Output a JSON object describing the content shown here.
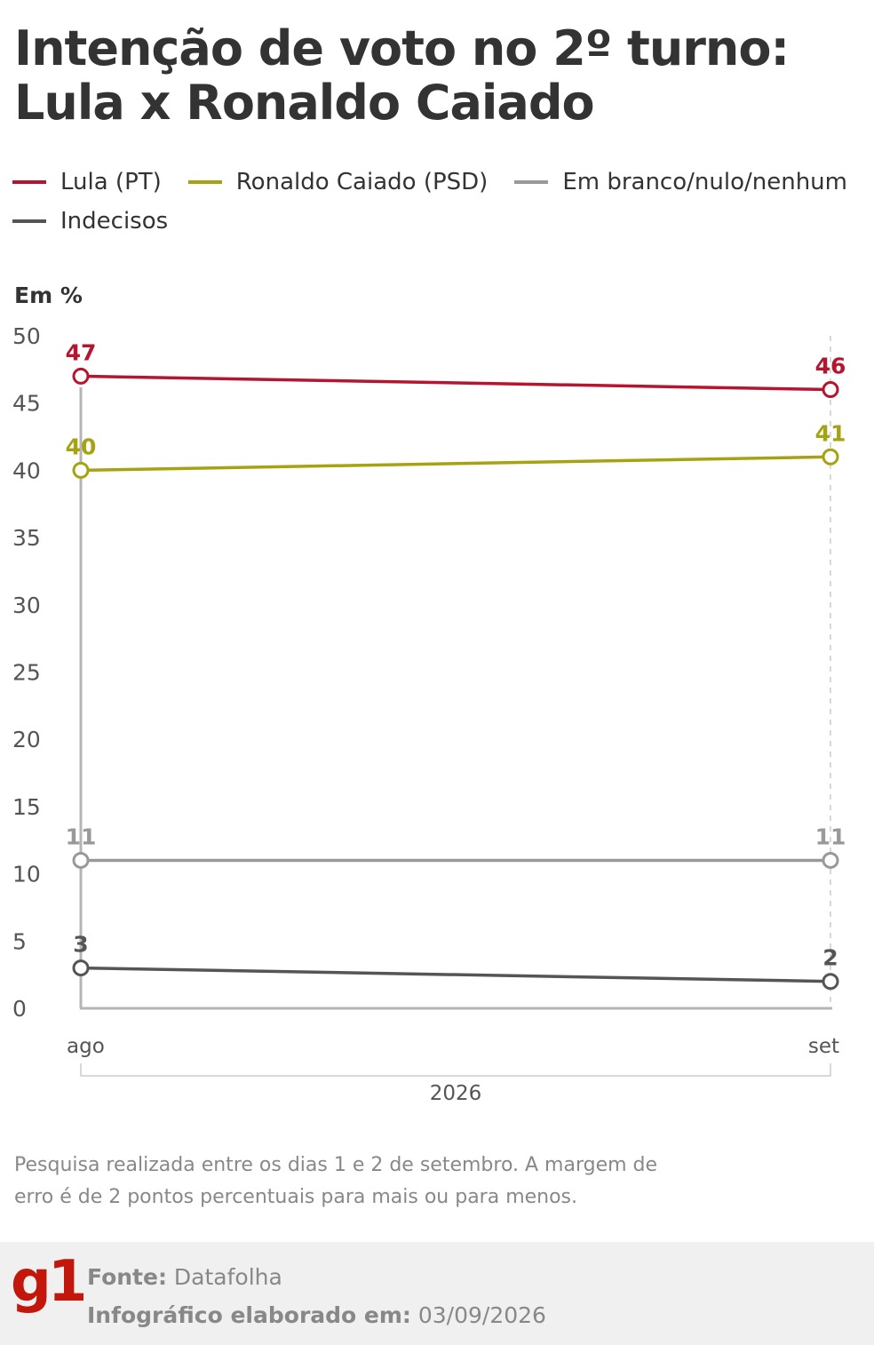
{
  "title": "Intenção de voto no 2º turno: Lula x Ronaldo Caiado",
  "unit_label": "Em %",
  "legend": [
    {
      "label": "Lula (PT)",
      "color": "#b5152f"
    },
    {
      "label": "Ronaldo Caiado (PSD)",
      "color": "#a6a312"
    },
    {
      "label": "Em branco/nulo/nenhum",
      "color": "#999999"
    },
    {
      "label": "Indecisos",
      "color": "#555555"
    }
  ],
  "chart_data": {
    "type": "line",
    "x": [
      "ago",
      "set"
    ],
    "x_group_label": "2026",
    "ylim": [
      0,
      50
    ],
    "yticks": [
      0,
      5,
      10,
      15,
      20,
      25,
      30,
      35,
      40,
      45,
      50
    ],
    "series": [
      {
        "name": "Lula (PT)",
        "values": [
          47,
          46
        ],
        "color": "#b5152f"
      },
      {
        "name": "Ronaldo Caiado (PSD)",
        "values": [
          40,
          41
        ],
        "color": "#a6a312"
      },
      {
        "name": "Em branco/nulo/nenhum",
        "values": [
          11,
          11
        ],
        "color": "#999999"
      },
      {
        "name": "Indecisos",
        "values": [
          3,
          2
        ],
        "color": "#555555"
      }
    ]
  },
  "note": "Pesquisa realizada entre os dias 1 e 2 de setembro. A margem de erro é de 2 pontos percentuais para mais ou para menos.",
  "footer": {
    "logo": "g1",
    "source_label": "Fonte:",
    "source_value": "Datafolha",
    "date_label": "Infográfico elaborado em:",
    "date_value": "03/09/2026"
  }
}
